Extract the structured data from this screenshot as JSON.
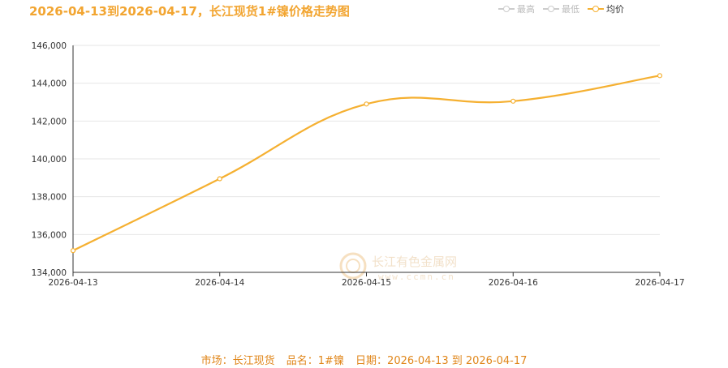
{
  "title": "2026-04-13到2026-04-17，长江现货1#镍价格走势图",
  "legend": [
    {
      "label": "最高",
      "color": "#cccccc"
    },
    {
      "label": "最低",
      "color": "#cccccc"
    },
    {
      "label": "均价",
      "color": "#f5b031"
    }
  ],
  "watermark": {
    "name": "长江有色金属网",
    "url": "www.ccmn.cn"
  },
  "footer": {
    "market": "市场：长江现货",
    "product": "品名：1#镍",
    "date_range": "日期：2026-04-13 到 2026-04-17"
  },
  "chart_data": {
    "type": "line",
    "title": "2026-04-13到2026-04-17，长江现货1#镍价格走势图",
    "categories": [
      "2026-04-13",
      "2026-04-14",
      "2026-04-15",
      "2026-04-16",
      "2026-04-17"
    ],
    "series": [
      {
        "name": "均价",
        "values": [
          135150,
          138950,
          142900,
          143050,
          144400
        ],
        "color": "#f5b031"
      }
    ],
    "y_ticks": [
      "134,000",
      "136,000",
      "138,000",
      "140,000",
      "142,000",
      "144,000",
      "146,000"
    ],
    "ylim": [
      134000,
      146000
    ],
    "grid": true,
    "legend_position": "top-right"
  }
}
